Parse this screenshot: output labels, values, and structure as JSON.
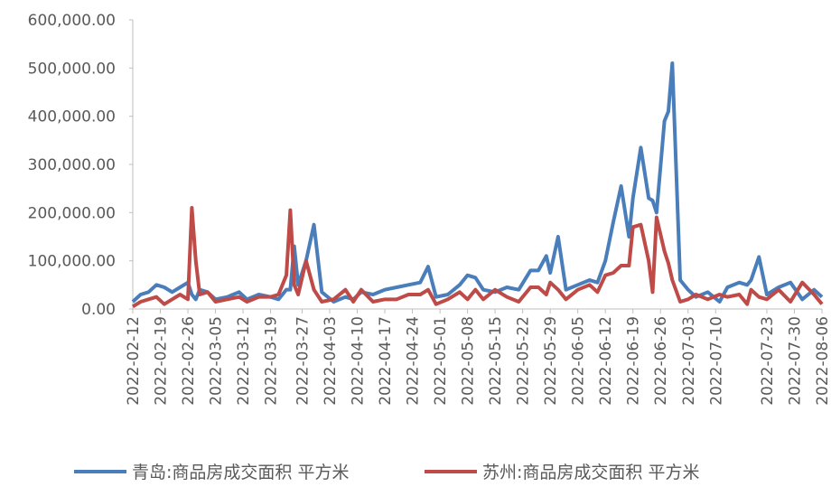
{
  "chart_data": {
    "type": "line",
    "x": [
      "2022-02-12",
      "2022-02-14",
      "2022-02-16",
      "2022-02-18",
      "2022-02-20",
      "2022-02-22",
      "2022-02-24",
      "2022-02-26",
      "2022-02-27",
      "2022-02-28",
      "2022-03-01",
      "2022-03-03",
      "2022-03-05",
      "2022-03-08",
      "2022-03-11",
      "2022-03-13",
      "2022-03-16",
      "2022-03-19",
      "2022-03-21",
      "2022-03-23",
      "2022-03-24",
      "2022-03-25",
      "2022-03-26",
      "2022-03-28",
      "2022-03-30",
      "2022-04-01",
      "2022-04-04",
      "2022-04-07",
      "2022-04-09",
      "2022-04-11",
      "2022-04-14",
      "2022-04-17",
      "2022-04-20",
      "2022-04-23",
      "2022-04-26",
      "2022-04-28",
      "2022-04-30",
      "2022-05-03",
      "2022-05-06",
      "2022-05-08",
      "2022-05-10",
      "2022-05-12",
      "2022-05-15",
      "2022-05-18",
      "2022-05-21",
      "2022-05-24",
      "2022-05-26",
      "2022-05-28",
      "2022-05-29",
      "2022-05-31",
      "2022-06-02",
      "2022-06-05",
      "2022-06-08",
      "2022-06-10",
      "2022-06-12",
      "2022-06-14",
      "2022-06-16",
      "2022-06-18",
      "2022-06-19",
      "2022-06-21",
      "2022-06-23",
      "2022-06-24",
      "2022-06-25",
      "2022-06-27",
      "2022-06-28",
      "2022-06-29",
      "2022-07-01",
      "2022-07-03",
      "2022-07-05",
      "2022-07-08",
      "2022-07-11",
      "2022-07-13",
      "2022-07-16",
      "2022-07-18",
      "2022-07-19",
      "2022-07-21",
      "2022-07-23",
      "2022-07-26",
      "2022-07-29",
      "2022-08-01",
      "2022-08-04",
      "2022-08-06"
    ],
    "series": [
      {
        "name": "青岛:商品房成交面积 平方米",
        "color": "#4a7ebb",
        "values": [
          15000,
          30000,
          35000,
          50000,
          45000,
          35000,
          45000,
          55000,
          30000,
          20000,
          40000,
          35000,
          20000,
          25000,
          35000,
          20000,
          30000,
          25000,
          20000,
          40000,
          40000,
          130000,
          50000,
          100000,
          175000,
          35000,
          15000,
          25000,
          20000,
          35000,
          30000,
          40000,
          45000,
          50000,
          55000,
          88000,
          25000,
          30000,
          50000,
          70000,
          65000,
          40000,
          35000,
          45000,
          40000,
          80000,
          80000,
          110000,
          75000,
          150000,
          40000,
          50000,
          60000,
          55000,
          100000,
          180000,
          255000,
          150000,
          230000,
          335000,
          230000,
          225000,
          200000,
          390000,
          410000,
          510000,
          60000,
          40000,
          25000,
          35000,
          15000,
          45000,
          55000,
          50000,
          60000,
          108000,
          30000,
          45000,
          55000,
          20000,
          40000,
          25000
        ]
      },
      {
        "name": "苏州:商品房成交面积 平方米",
        "color": "#be4b48",
        "values": [
          5000,
          15000,
          20000,
          25000,
          10000,
          20000,
          30000,
          20000,
          210000,
          100000,
          30000,
          35000,
          15000,
          20000,
          25000,
          15000,
          25000,
          25000,
          30000,
          70000,
          205000,
          50000,
          30000,
          100000,
          40000,
          15000,
          20000,
          40000,
          15000,
          40000,
          15000,
          20000,
          20000,
          30000,
          30000,
          40000,
          10000,
          20000,
          35000,
          20000,
          40000,
          20000,
          40000,
          25000,
          15000,
          45000,
          45000,
          30000,
          55000,
          40000,
          20000,
          40000,
          50000,
          35000,
          70000,
          75000,
          90000,
          90000,
          170000,
          175000,
          100000,
          35000,
          190000,
          120000,
          95000,
          60000,
          15000,
          20000,
          30000,
          20000,
          30000,
          25000,
          30000,
          10000,
          40000,
          25000,
          20000,
          40000,
          15000,
          55000,
          30000,
          10000
        ]
      }
    ],
    "xlim": [
      "2022-02-12",
      "2022-08-06"
    ],
    "xticks": [
      "2022-02-12",
      "2022-02-19",
      "2022-02-26",
      "2022-03-05",
      "2022-03-12",
      "2022-03-19",
      "2022-03-27",
      "2022-04-03",
      "2022-04-10",
      "2022-04-17",
      "2022-04-24",
      "2022-05-01",
      "2022-05-08",
      "2022-05-15",
      "2022-05-22",
      "2022-05-29",
      "2022-06-05",
      "2022-06-12",
      "2022-06-19",
      "2022-06-26",
      "2022-07-03",
      "2022-07-10",
      "2022-07-23",
      "2022-07-30",
      "2022-08-06"
    ],
    "ylim": [
      0,
      600000
    ],
    "yticks": [
      {
        "value": 0,
        "label": "0.00"
      },
      {
        "value": 100000,
        "label": "100,000.00"
      },
      {
        "value": 200000,
        "label": "200,000.00"
      },
      {
        "value": 300000,
        "label": "300,000.00"
      },
      {
        "value": 400000,
        "label": "400,000.00"
      },
      {
        "value": 500000,
        "label": "500,000.00"
      },
      {
        "value": 600000,
        "label": "600,000.00"
      }
    ],
    "legend": "bottom"
  }
}
